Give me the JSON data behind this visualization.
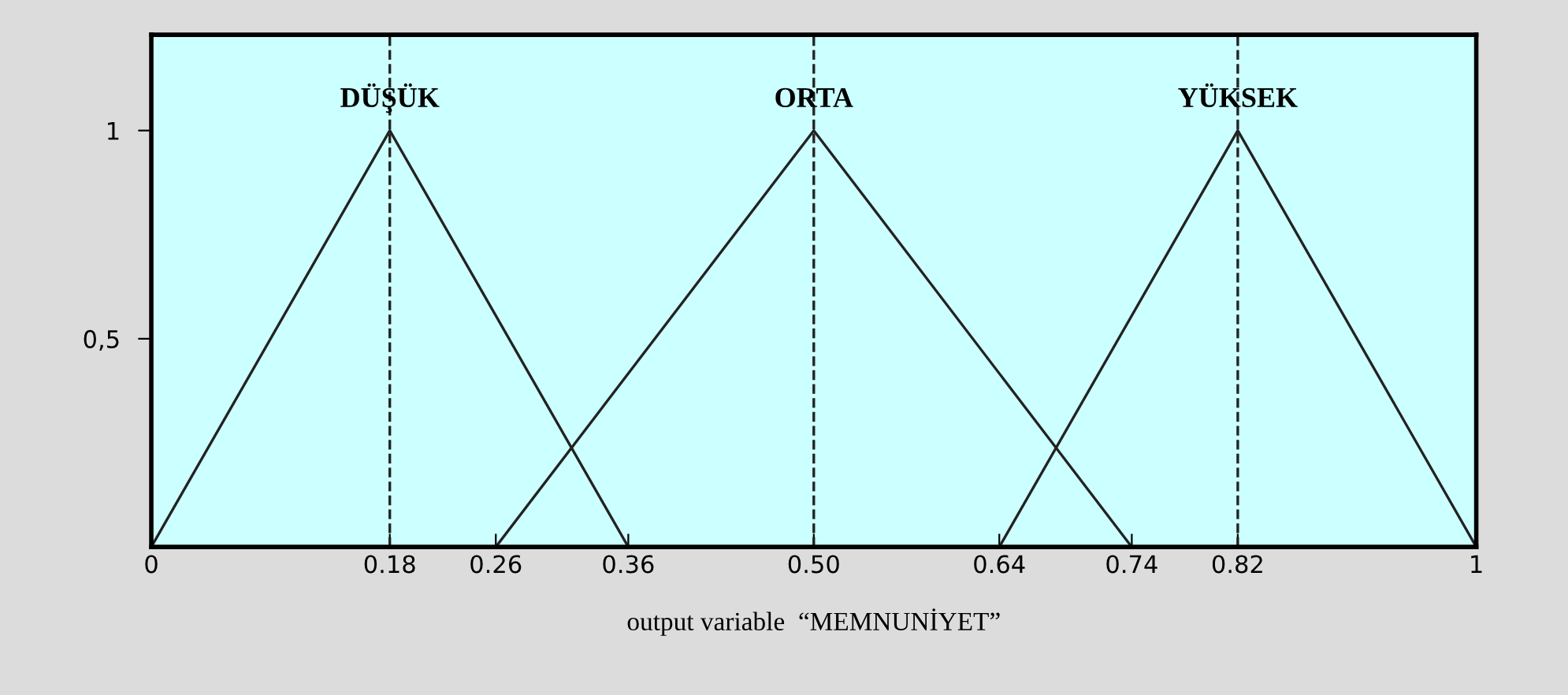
{
  "chart_data": {
    "type": "line",
    "xlabel": "output variable  “MEMNUNİYET”",
    "series": [
      {
        "name": "DÜŞÜK",
        "color": "#222222",
        "x": [
          0,
          0.18,
          0.36
        ],
        "values": [
          0,
          1,
          0
        ]
      },
      {
        "name": "ORTA",
        "color": "#222222",
        "x": [
          0.26,
          0.5,
          0.74
        ],
        "values": [
          0,
          1,
          0
        ]
      },
      {
        "name": "YÜKSEK",
        "color": "#222222",
        "x": [
          0.64,
          0.82,
          1
        ],
        "values": [
          0,
          1,
          0
        ]
      }
    ],
    "ref_lines": [
      {
        "axis": "x",
        "value": 0.18,
        "color": "#222222",
        "line_style": "dashed"
      },
      {
        "axis": "x",
        "value": 0.5,
        "color": "#222222",
        "line_style": "dashed"
      },
      {
        "axis": "x",
        "value": 0.82,
        "color": "#222222",
        "line_style": "dashed"
      }
    ],
    "xlim": [
      0,
      1
    ],
    "ylim": [
      0,
      1.23
    ],
    "xticks": [
      0,
      0.18,
      0.26,
      0.36,
      {
        "value": 0.5,
        "label": "0.50"
      },
      0.64,
      0.74,
      0.82,
      1
    ],
    "yticks": [
      {
        "value": 0.5,
        "label": "0,5"
      },
      1
    ],
    "marker": "none",
    "line_style": "solid",
    "grid": false,
    "legend": false
  }
}
